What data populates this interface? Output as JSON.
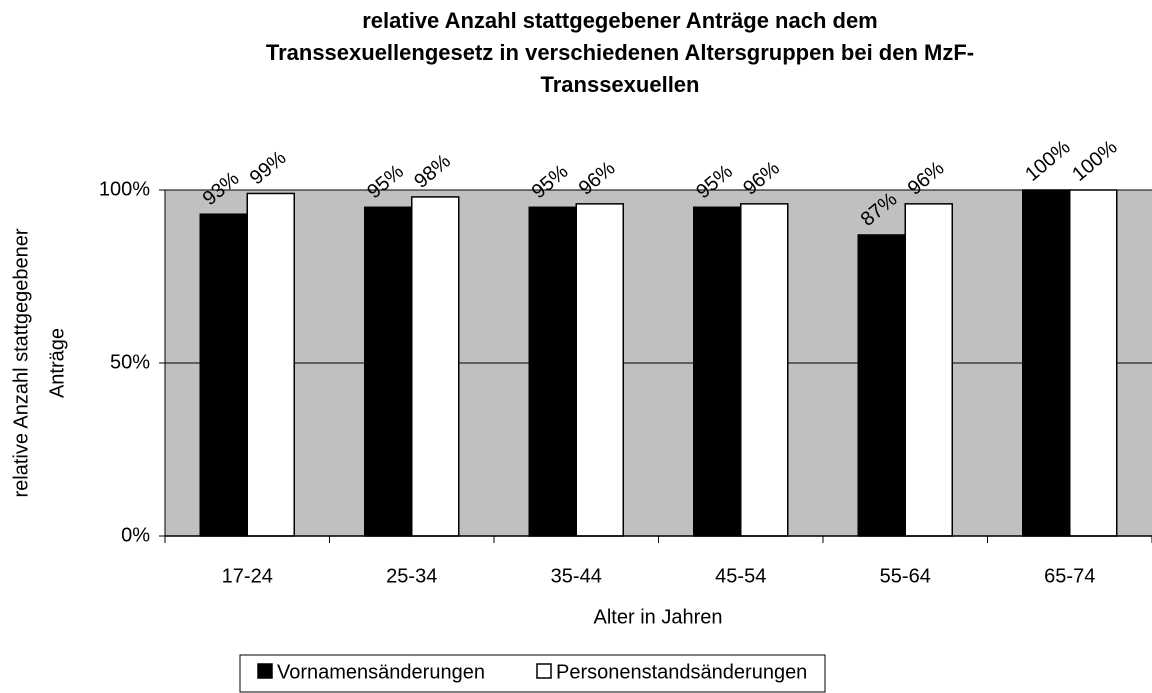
{
  "chart_data": {
    "type": "bar",
    "title": [
      "relative Anzahl stattgegebener Anträge nach dem",
      "Transsexuellengesetz in verschiedenen Altersgruppen bei den MzF-",
      "Transsexuellen"
    ],
    "categories": [
      "17-24",
      "25-34",
      "35-44",
      "45-54",
      "55-64",
      "65-74"
    ],
    "series": [
      {
        "name": "Vornamensänderungen",
        "color": "#000000",
        "values": [
          93,
          95,
          95,
          95,
          87,
          100
        ],
        "value_labels": [
          "93%",
          "95%",
          "95%",
          "95%",
          "87%",
          "100%"
        ]
      },
      {
        "name": "Personenstandsänderungen",
        "color": "#ffffff",
        "values": [
          99,
          98,
          96,
          96,
          96,
          100
        ],
        "value_labels": [
          "99%",
          "98%",
          "96%",
          "96%",
          "96%",
          "100%"
        ]
      }
    ],
    "xlabel": "Alter in Jahren",
    "ylabel": [
      "relative Anzahl stattgegebener",
      "Anträge"
    ],
    "ylim": [
      0,
      100
    ],
    "yticks": [
      {
        "value": 0,
        "label": "0%"
      },
      {
        "value": 50,
        "label": "50%"
      },
      {
        "value": 100,
        "label": "100%"
      }
    ],
    "grid": true,
    "legend": "bottom"
  }
}
